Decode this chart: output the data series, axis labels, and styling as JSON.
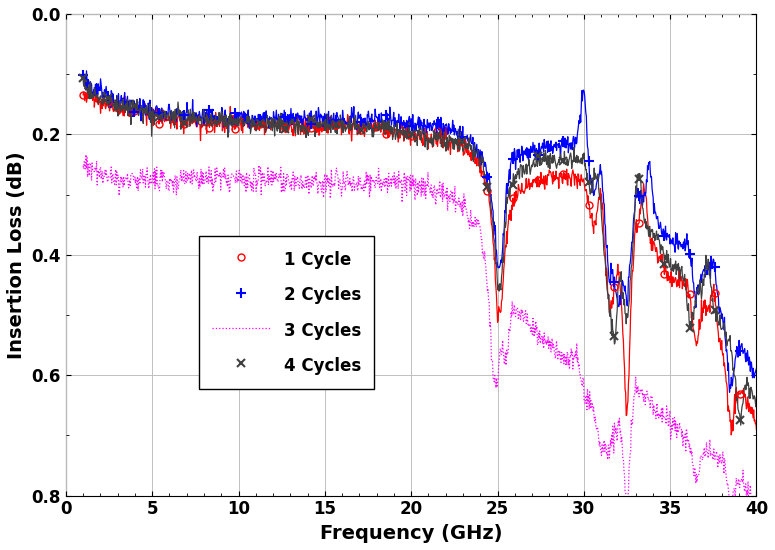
{
  "title": "",
  "xlabel": "Frequency (GHz)",
  "ylabel": "Insertion Loss (dB)",
  "xlim": [
    0,
    40
  ],
  "ylim": [
    0.8,
    0.0
  ],
  "xticks": [
    0,
    5,
    10,
    15,
    20,
    25,
    30,
    35,
    40
  ],
  "yticks": [
    0.0,
    0.2,
    0.4,
    0.6,
    0.8
  ],
  "legend_labels": [
    "1 Cycle",
    "2 Cycles",
    "3 Cycles",
    "4 Cycles"
  ],
  "colors": [
    "red",
    "blue",
    "magenta",
    "#404040"
  ],
  "background_color": "white",
  "grid_color": "#c0c0c0"
}
